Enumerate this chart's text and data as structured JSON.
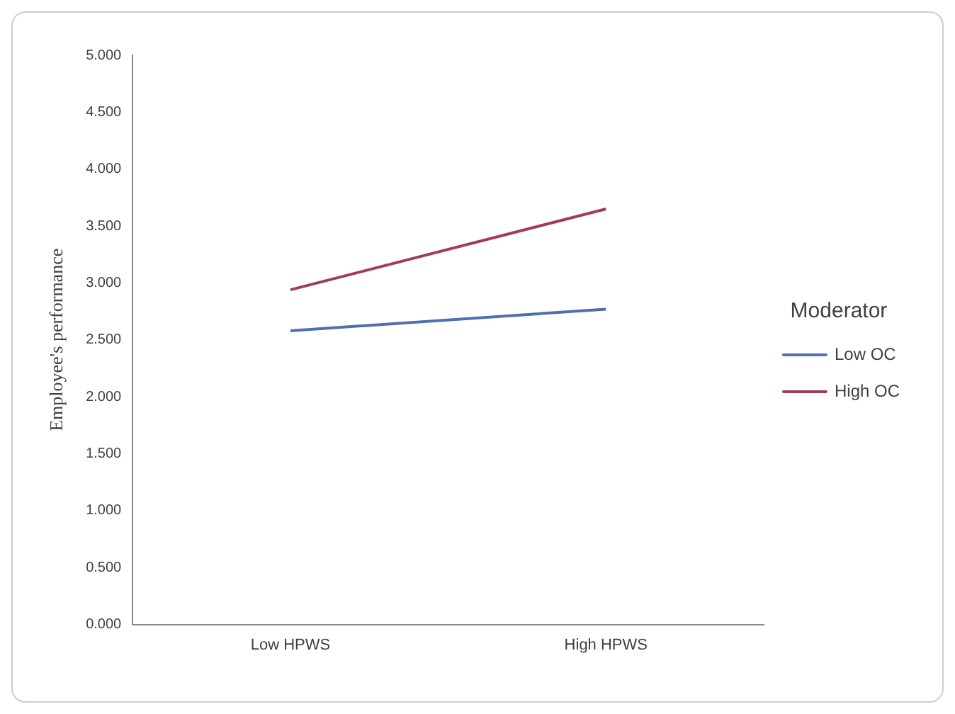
{
  "chart_data": {
    "type": "line",
    "ylabel": "Employee's performance",
    "legend_title": "Moderator",
    "legend": "right",
    "grid": false,
    "marker": "none",
    "line_style": "solid",
    "categories": [
      "Low HPWS",
      "High HPWS"
    ],
    "series": [
      {
        "name": "Low OC",
        "color": "#4f6fb0",
        "values": [
          2.58,
          2.77
        ]
      },
      {
        "name": "High OC",
        "color": "#a33b5a",
        "values": [
          2.94,
          3.65
        ]
      }
    ],
    "ylim": [
      0,
      5
    ],
    "yticks": [
      {
        "value": 0,
        "label": "0.000"
      },
      {
        "value": 0.5,
        "label": "0.500"
      },
      {
        "value": 1,
        "label": "1.000"
      },
      {
        "value": 1.5,
        "label": "1.500"
      },
      {
        "value": 2,
        "label": "2.000"
      },
      {
        "value": 2.5,
        "label": "2.500"
      },
      {
        "value": 3,
        "label": "3.000"
      },
      {
        "value": 3.5,
        "label": "3.500"
      },
      {
        "value": 4,
        "label": "4.000"
      },
      {
        "value": 4.5,
        "label": "4.500"
      },
      {
        "value": 5,
        "label": "5.000"
      }
    ]
  }
}
